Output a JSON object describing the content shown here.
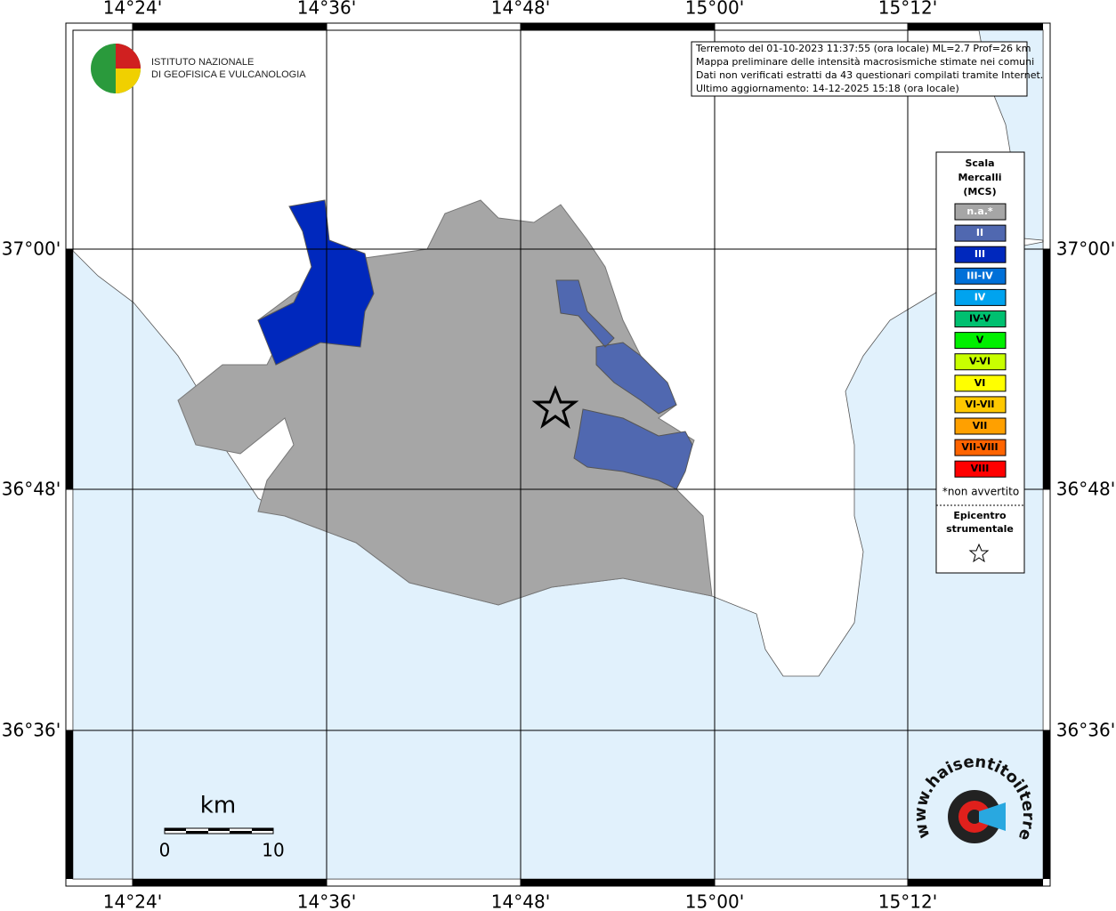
{
  "map": {
    "lon_labels": [
      "14°24'",
      "14°36'",
      "14°48'",
      "15°00'",
      "15°12'"
    ],
    "lat_labels": [
      "37°00'",
      "36°48'",
      "36°36'"
    ],
    "institute": [
      "ISTITUTO NAZIONALE",
      "DI GEOFISICA E VULCANOLOGIA"
    ],
    "info": [
      "Terremoto del 01-10-2023 11:37:55 (ora locale) ML=2.7 Prof=26 km",
      "Mappa preliminare delle intensità macrosismiche stimate nei comuni",
      "Dati non verificati estratti da 43 questionari compilati tramite Internet.",
      "Ultimo aggiornamento: 14-12-2025 15:18 (ora locale)"
    ],
    "legend": {
      "title": [
        "Scala",
        "Mercalli",
        "(MCS)"
      ],
      "items": [
        {
          "label": "n.a.*",
          "color": "#a6a6a6"
        },
        {
          "label": "II",
          "color": "#5068b0"
        },
        {
          "label": "III",
          "color": "#0028bd"
        },
        {
          "label": "III-IV",
          "color": "#0070d8"
        },
        {
          "label": "IV",
          "color": "#00a3ef"
        },
        {
          "label": "IV-V",
          "color": "#00c070"
        },
        {
          "label": "V",
          "color": "#00f000"
        },
        {
          "label": "V-VI",
          "color": "#c8ff00"
        },
        {
          "label": "VI",
          "color": "#ffff00"
        },
        {
          "label": "VI-VII",
          "color": "#ffc800"
        },
        {
          "label": "VII",
          "color": "#ffa000"
        },
        {
          "label": "VII-VIII",
          "color": "#ff6400"
        },
        {
          "label": "VIII",
          "color": "#ff0000"
        }
      ],
      "note": "*non avvertito",
      "epicenter": [
        "Epicentro",
        "strumentale"
      ]
    },
    "scale": {
      "unit": "km",
      "start": "0",
      "end": "10"
    },
    "site": "www.haisentitoilterremoto.it"
  }
}
